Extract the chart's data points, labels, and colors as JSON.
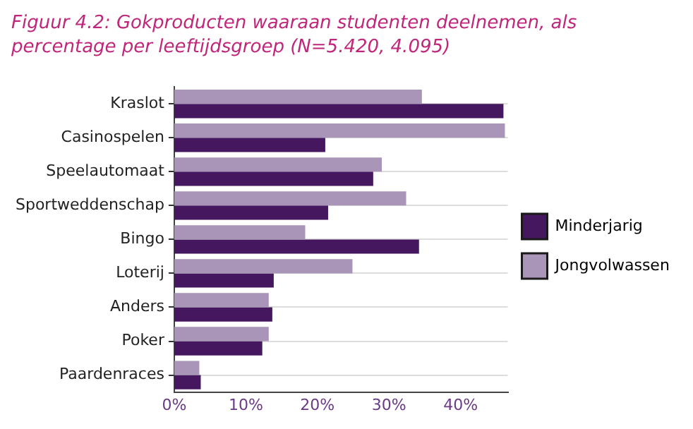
{
  "chart_data": {
    "type": "bar",
    "orientation": "horizontal",
    "title": "Figuur 4.2: Gokproducten waaraan studenten deelnemen, als percentage per leeftijdsgroep (N=5.420, 4.095)",
    "categories": [
      "Kraslot",
      "Casinospelen",
      "Speelautomaat",
      "Sportweddenschap",
      "Bingo",
      "Loterij",
      "Anders",
      "Poker",
      "Paardenraces"
    ],
    "series": [
      {
        "name": "Jongvolwassen",
        "color": "#a895b8",
        "values": [
          34.6,
          46.2,
          29.0,
          32.4,
          18.3,
          24.9,
          13.2,
          13.2,
          3.5
        ]
      },
      {
        "name": "Minderjarig",
        "color": "#45175f",
        "values": [
          46.0,
          21.1,
          27.8,
          21.5,
          34.2,
          13.9,
          13.7,
          12.3,
          3.7
        ]
      }
    ],
    "xlim": [
      0,
      46.6
    ],
    "xticks": [
      {
        "value": 0,
        "label": "0%"
      },
      {
        "value": 10,
        "label": "10%"
      },
      {
        "value": 20,
        "label": "20%"
      },
      {
        "value": 30,
        "label": "30%"
      },
      {
        "value": 40,
        "label": "40%"
      }
    ],
    "grid": "y",
    "legend": "right"
  }
}
